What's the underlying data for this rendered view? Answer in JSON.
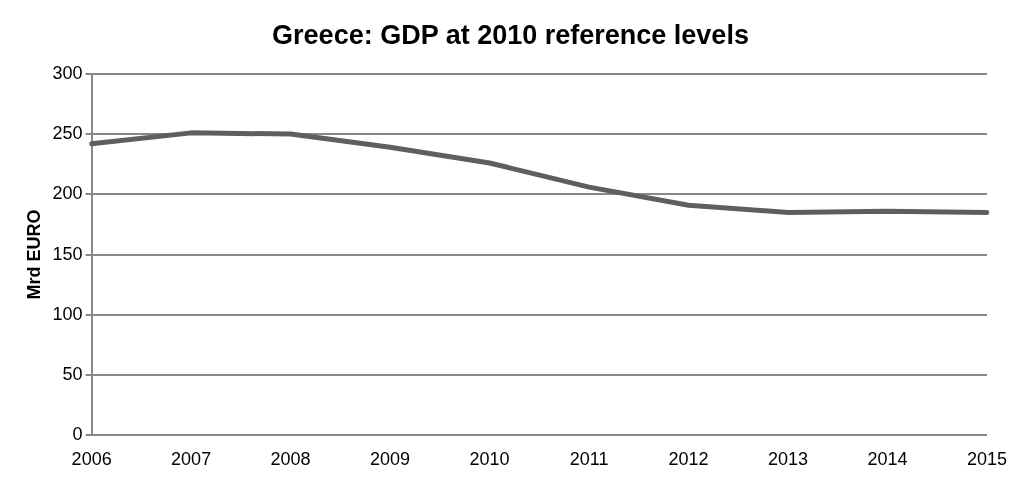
{
  "chart_data": {
    "type": "line",
    "title": "Greece: GDP at 2010 reference levels",
    "ylabel": "Mrd EURO",
    "categories": [
      "2006",
      "2007",
      "2008",
      "2009",
      "2010",
      "2011",
      "2012",
      "2013",
      "2014",
      "2015"
    ],
    "series": [
      {
        "color": "#5f5f5f",
        "values": [
          242,
          251,
          250,
          239,
          226,
          206,
          191,
          185,
          186,
          185
        ]
      }
    ],
    "ylim": [
      0,
      300
    ],
    "yticks": [
      0,
      50,
      100,
      150,
      200,
      250,
      300
    ],
    "grid": "y",
    "legend": false,
    "marker": "none",
    "line_style": "solid"
  }
}
